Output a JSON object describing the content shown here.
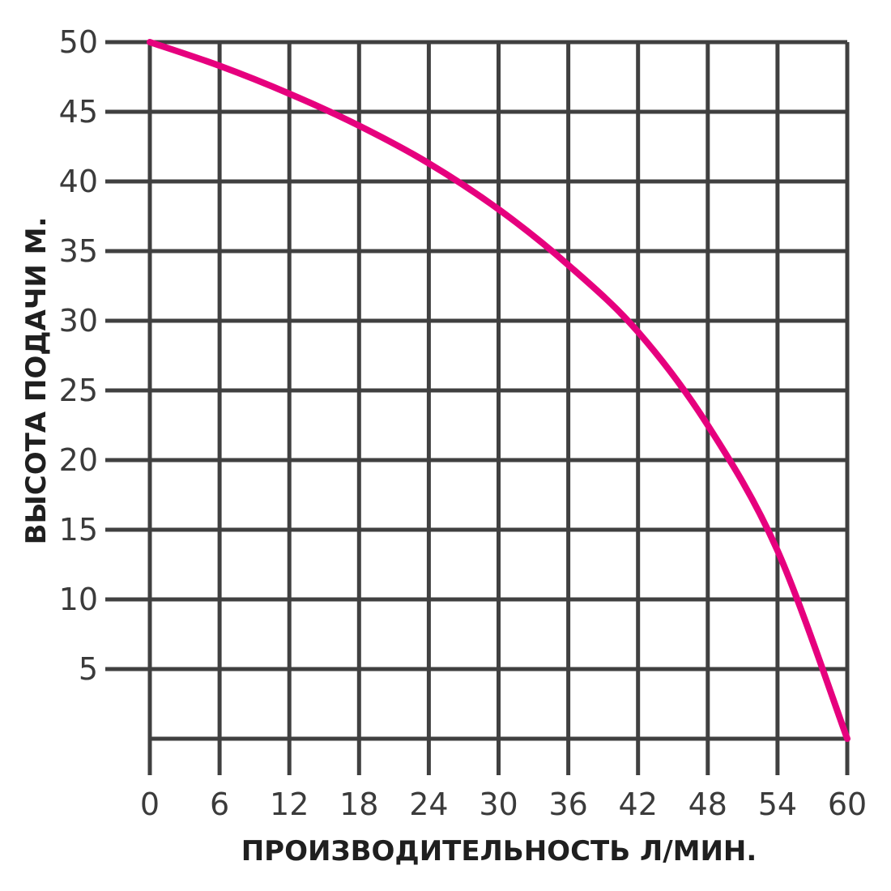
{
  "chart_data": {
    "type": "line",
    "title": "",
    "xlabel": "ПРОИЗВОДИТЕЛЬНОСТЬ Л/МИН.",
    "ylabel": "ВЫСОТА ПОДАЧИ М.",
    "xlim": [
      0,
      60
    ],
    "ylim": [
      0,
      50
    ],
    "x_ticks": [
      "0",
      "6",
      "12",
      "18",
      "24",
      "30",
      "36",
      "42",
      "48",
      "54",
      "60"
    ],
    "y_ticks": [
      "5",
      "10",
      "15",
      "20",
      "25",
      "30",
      "35",
      "40",
      "45",
      "50"
    ],
    "grid": true,
    "line_color": "#e6007e",
    "grid_color": "#404040",
    "series": [
      {
        "x": [
          0,
          6,
          12,
          18,
          24,
          30,
          36,
          42,
          48,
          54,
          60
        ],
        "values": [
          50,
          48.3,
          46.3,
          44,
          41.3,
          38,
          34,
          29.2,
          22.5,
          13.5,
          0
        ]
      }
    ]
  }
}
